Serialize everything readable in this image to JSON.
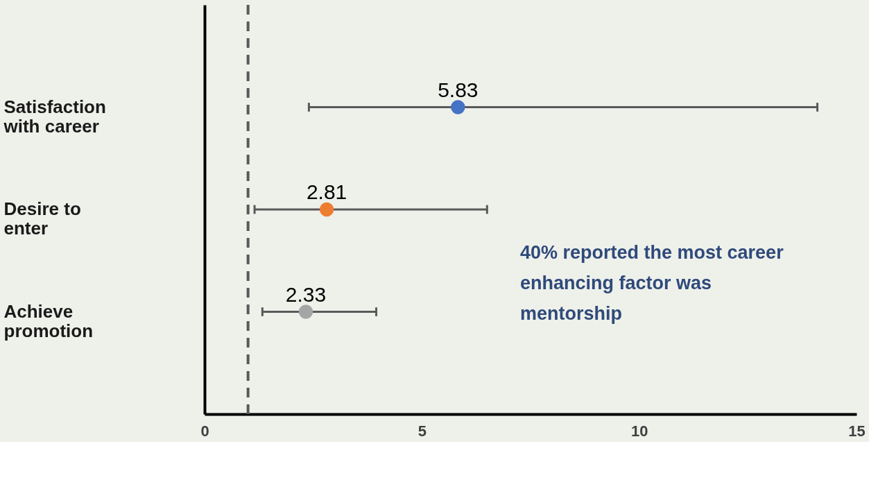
{
  "chart_data": {
    "type": "scatter",
    "orientation": "horizontal",
    "categories": [
      "Satisfaction with career",
      "Desire to enter",
      "Achieve promotion"
    ],
    "values": [
      5.83,
      2.81,
      2.33
    ],
    "colors": [
      "#4472c4",
      "#ed7d31",
      "#a5a5a5"
    ],
    "errors": [
      [
        2.4,
        14.1
      ],
      [
        1.15,
        6.5
      ],
      [
        1.33,
        3.95
      ]
    ],
    "data_labels": true,
    "marker": "circle",
    "xlim": [
      0,
      15
    ],
    "xticks": [
      0,
      5,
      10,
      15
    ],
    "grid": false,
    "ref_lines": [
      {
        "axis": "x",
        "value": 1,
        "color": "#595959",
        "line_style": "dashed"
      }
    ],
    "annotations": [
      "40% reported the most career enhancing factor was mentorship"
    ]
  }
}
